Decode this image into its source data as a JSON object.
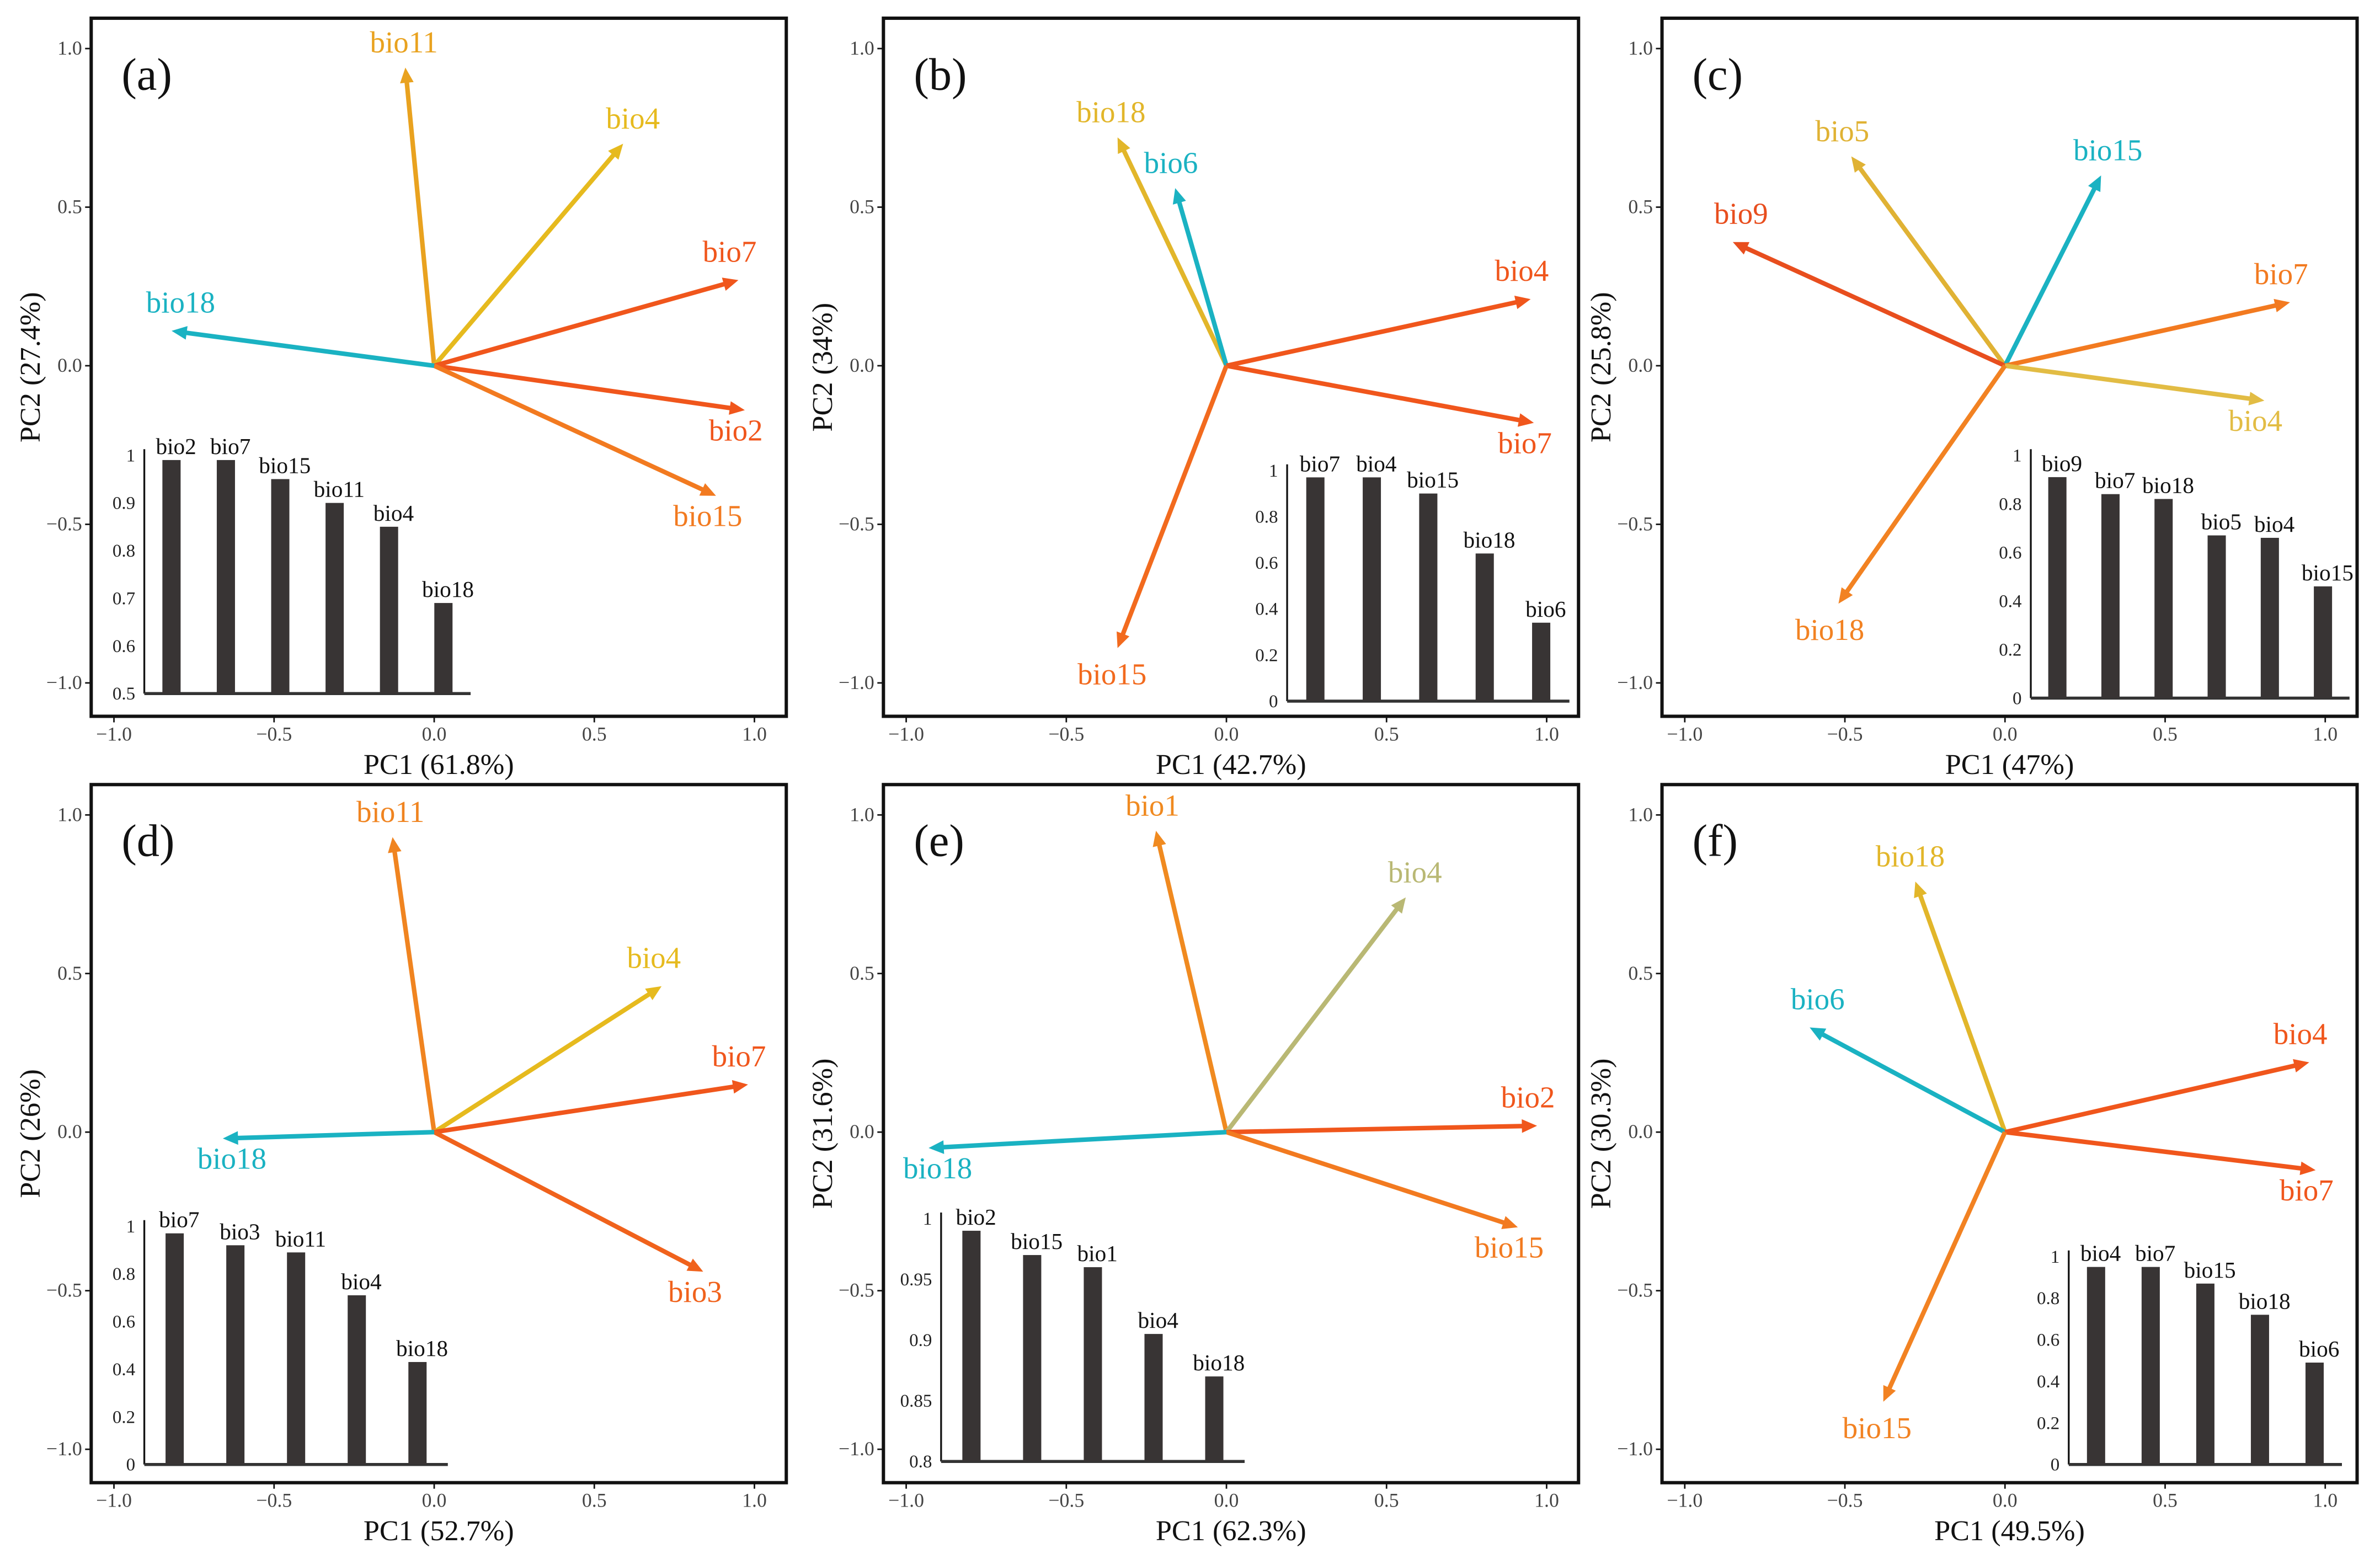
{
  "chart_data": [
    {
      "type": "biplot",
      "panel": "(a)",
      "xlabel": "PC1 (61.8%)",
      "ylabel": "PC2 (27.4%)",
      "xlim": [
        -1,
        1
      ],
      "ylim": [
        -1,
        1
      ],
      "xticks": [
        "−1.0",
        "−0.5",
        "0.0",
        "0.5",
        "1.0"
      ],
      "yticks": [
        "1.0",
        "0.5",
        "0.0",
        "−0.5",
        "−1.0"
      ],
      "vectors": [
        {
          "name": "bio11",
          "x": -0.09,
          "y": 0.94,
          "color": "#e9a21f"
        },
        {
          "name": "bio4",
          "x": 0.59,
          "y": 0.7,
          "color": "#e6ba1e"
        },
        {
          "name": "bio7",
          "x": 0.95,
          "y": 0.27,
          "color": "#f0561c"
        },
        {
          "name": "bio2",
          "x": 0.97,
          "y": -0.14,
          "color": "#f0561c"
        },
        {
          "name": "bio15",
          "x": 0.88,
          "y": -0.41,
          "color": "#f27a20"
        },
        {
          "name": "bio18",
          "x": -0.82,
          "y": 0.11,
          "color": "#1ab2c2"
        }
      ],
      "inset": {
        "type": "bar",
        "categories": [
          "bio2",
          "bio7",
          "bio15",
          "bio11",
          "bio4",
          "bio18"
        ],
        "values": [
          0.99,
          0.99,
          0.95,
          0.9,
          0.85,
          0.69
        ],
        "ylim": [
          0.5,
          1
        ],
        "yticks": [
          "0.5",
          "0.6",
          "0.7",
          "0.8",
          "0.9",
          "1"
        ]
      }
    },
    {
      "type": "biplot",
      "panel": "(b)",
      "xlabel": "PC1 (42.7%)",
      "ylabel": "PC2 (34%)",
      "xlim": [
        -1,
        1
      ],
      "ylim": [
        -1,
        1
      ],
      "xticks": [
        "−1.0",
        "−0.5",
        "0.0",
        "0.5",
        "1.0"
      ],
      "yticks": [
        "1.0",
        "0.5",
        "0.0",
        "−0.5",
        "−1.0"
      ],
      "vectors": [
        {
          "name": "bio18",
          "x": -0.34,
          "y": 0.72,
          "color": "#e2b62a"
        },
        {
          "name": "bio6",
          "x": -0.16,
          "y": 0.56,
          "color": "#1ab2c2"
        },
        {
          "name": "bio4",
          "x": 0.95,
          "y": 0.21,
          "color": "#f0561c"
        },
        {
          "name": "bio7",
          "x": 0.96,
          "y": -0.18,
          "color": "#f0561c"
        },
        {
          "name": "bio15",
          "x": -0.34,
          "y": -0.89,
          "color": "#f26a1e"
        }
      ],
      "inset": {
        "type": "bar",
        "categories": [
          "bio7",
          "bio4",
          "bio15",
          "bio18",
          "bio6"
        ],
        "values": [
          0.97,
          0.97,
          0.9,
          0.64,
          0.34
        ],
        "ylim": [
          0,
          1
        ],
        "yticks": [
          "0",
          "0.2",
          "0.4",
          "0.6",
          "0.8",
          "1"
        ]
      }
    },
    {
      "type": "biplot",
      "panel": "(c)",
      "xlabel": "PC1 (47%)",
      "ylabel": "PC2 (25.8%)",
      "xlim": [
        -1,
        1
      ],
      "ylim": [
        -1,
        1
      ],
      "xticks": [
        "−1.0",
        "−0.5",
        "0.0",
        "0.5",
        "1.0"
      ],
      "yticks": [
        "1.0",
        "0.5",
        "0.0",
        "−0.5",
        "−1.0"
      ],
      "vectors": [
        {
          "name": "bio5",
          "x": -0.48,
          "y": 0.66,
          "color": "#e0b234"
        },
        {
          "name": "bio15",
          "x": 0.3,
          "y": 0.6,
          "color": "#1ab2c2"
        },
        {
          "name": "bio9",
          "x": -0.85,
          "y": 0.39,
          "color": "#e84e1e"
        },
        {
          "name": "bio7",
          "x": 0.89,
          "y": 0.2,
          "color": "#f27a20"
        },
        {
          "name": "bio4",
          "x": 0.81,
          "y": -0.11,
          "color": "#e2bc44"
        },
        {
          "name": "bio18",
          "x": -0.52,
          "y": -0.75,
          "color": "#f28222"
        }
      ],
      "inset": {
        "type": "bar",
        "categories": [
          "bio9",
          "bio7",
          "bio18",
          "bio5",
          "bio4",
          "bio15"
        ],
        "values": [
          0.91,
          0.84,
          0.82,
          0.67,
          0.66,
          0.46
        ],
        "ylim": [
          0,
          1
        ],
        "yticks": [
          "0",
          "0.2",
          "0.4",
          "0.6",
          "0.8",
          "1"
        ]
      }
    },
    {
      "type": "biplot",
      "panel": "(d)",
      "xlabel": "PC1 (52.7%)",
      "ylabel": "PC2 (26%)",
      "xlim": [
        -1,
        1
      ],
      "ylim": [
        -1,
        1
      ],
      "xticks": [
        "−1.0",
        "−0.5",
        "0.0",
        "0.5",
        "1.0"
      ],
      "yticks": [
        "1.0",
        "0.5",
        "0.0",
        "−0.5",
        "−1.0"
      ],
      "vectors": [
        {
          "name": "bio11",
          "x": -0.13,
          "y": 0.93,
          "color": "#f08420"
        },
        {
          "name": "bio4",
          "x": 0.71,
          "y": 0.46,
          "color": "#e6ba1e"
        },
        {
          "name": "bio7",
          "x": 0.98,
          "y": 0.15,
          "color": "#f0561c"
        },
        {
          "name": "bio3",
          "x": 0.84,
          "y": -0.44,
          "color": "#f0621c"
        },
        {
          "name": "bio18",
          "x": -0.66,
          "y": -0.02,
          "color": "#1ab2c2"
        }
      ],
      "inset": {
        "type": "bar",
        "categories": [
          "bio7",
          "bio3",
          "bio11",
          "bio4",
          "bio18"
        ],
        "values": [
          0.97,
          0.92,
          0.89,
          0.71,
          0.43
        ],
        "ylim": [
          0,
          1
        ],
        "yticks": [
          "0",
          "0.2",
          "0.4",
          "0.6",
          "0.8",
          "1"
        ]
      }
    },
    {
      "type": "biplot",
      "panel": "(e)",
      "xlabel": "PC1 (62.3%)",
      "ylabel": "PC2 (31.6%)",
      "xlim": [
        -1,
        1
      ],
      "ylim": [
        -1,
        1
      ],
      "xticks": [
        "−1.0",
        "−0.5",
        "0.0",
        "0.5",
        "1.0"
      ],
      "yticks": [
        "1.0",
        "0.5",
        "0.0",
        "−0.5",
        "−1.0"
      ],
      "vectors": [
        {
          "name": "bio1",
          "x": -0.22,
          "y": 0.95,
          "color": "#f08a20"
        },
        {
          "name": "bio4",
          "x": 0.56,
          "y": 0.74,
          "color": "#b9b874"
        },
        {
          "name": "bio2",
          "x": 0.97,
          "y": 0.02,
          "color": "#f0561c"
        },
        {
          "name": "bio15",
          "x": 0.91,
          "y": -0.3,
          "color": "#f27a20"
        },
        {
          "name": "bio18",
          "x": -0.93,
          "y": -0.05,
          "color": "#1ab2c2"
        }
      ],
      "inset": {
        "type": "bar",
        "categories": [
          "bio2",
          "bio15",
          "bio1",
          "bio4",
          "bio18"
        ],
        "values": [
          0.99,
          0.97,
          0.96,
          0.905,
          0.87
        ],
        "ylim": [
          0.8,
          1
        ],
        "yticks": [
          "0.8",
          "0.85",
          "0.9",
          "0.95",
          "1"
        ]
      }
    },
    {
      "type": "biplot",
      "panel": "(f)",
      "xlabel": "PC1 (49.5%)",
      "ylabel": "PC2 (30.3%)",
      "xlim": [
        -1,
        1
      ],
      "ylim": [
        -1,
        1
      ],
      "xticks": [
        "−1.0",
        "−0.5",
        "0.0",
        "0.5",
        "1.0"
      ],
      "yticks": [
        "1.0",
        "0.5",
        "0.0",
        "−0.5",
        "−1.0"
      ],
      "vectors": [
        {
          "name": "bio18",
          "x": -0.28,
          "y": 0.79,
          "color": "#e2b62a"
        },
        {
          "name": "bio6",
          "x": -0.61,
          "y": 0.33,
          "color": "#1ab2c2"
        },
        {
          "name": "bio4",
          "x": 0.95,
          "y": 0.22,
          "color": "#f0561c"
        },
        {
          "name": "bio7",
          "x": 0.97,
          "y": -0.12,
          "color": "#f0561c"
        },
        {
          "name": "bio15",
          "x": -0.38,
          "y": -0.85,
          "color": "#f28222"
        }
      ],
      "inset": {
        "type": "bar",
        "categories": [
          "bio4",
          "bio7",
          "bio15",
          "bio18",
          "bio6"
        ],
        "values": [
          0.95,
          0.95,
          0.87,
          0.72,
          0.49
        ],
        "ylim": [
          0,
          1
        ],
        "yticks": [
          "0",
          "0.2",
          "0.4",
          "0.6",
          "0.8",
          "1"
        ]
      }
    }
  ]
}
